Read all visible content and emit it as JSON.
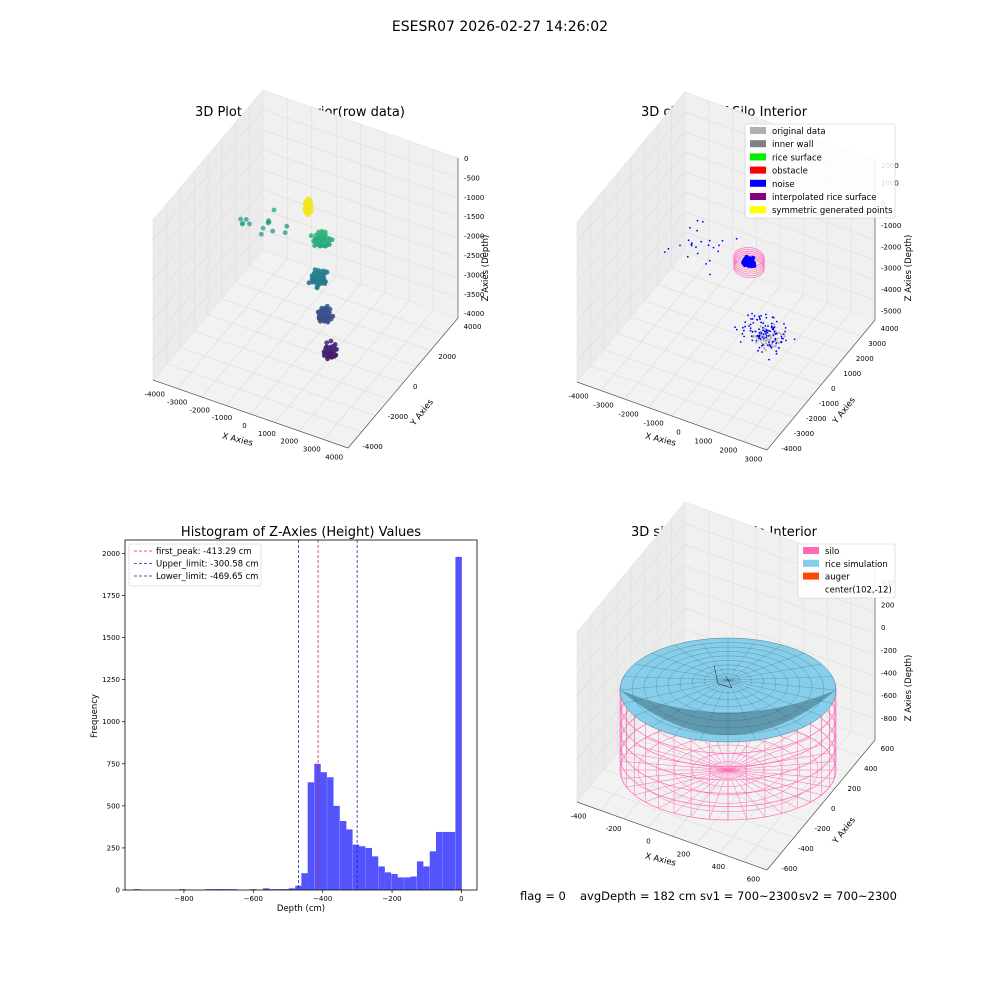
{
  "figure": {
    "title": "ESESR07 2026-02-27 14:26:02",
    "footer": {
      "flag": "flag = 0",
      "avg_depth": "avgDepth = 182 cm",
      "sv1": "sv1 = 700~2300",
      "sv2": "sv2 = 700~2300"
    }
  },
  "colors": {
    "hist_bar": "#4b4bff",
    "first_peak": "#d62728",
    "limits": "#1f1faa",
    "original": "#b0b0b0",
    "inner_wall": "#808080",
    "rice_surface": "#00ee00",
    "obstacle": "#ff0000",
    "noise": "#0000ff",
    "interpolated": "#800080",
    "symmetric": "#ffff00",
    "silo": "#ff69b4",
    "rice_sim": "#87ceeb",
    "auger": "#ff4500"
  },
  "chart_data": [
    {
      "type": "scatter",
      "title": "3D Plot of Silo Interior(row data)",
      "xlabel": "X Axies",
      "ylabel": "Y Axies",
      "zlabel": "Z Axies (Depth)",
      "x_ticks": [
        "-4000",
        "-3000",
        "-2000",
        "-1000",
        "0",
        "1000",
        "2000",
        "3000",
        "4000"
      ],
      "y_ticks": [
        "-4000",
        "-2000",
        "0",
        "2000",
        "4000"
      ],
      "z_ticks": [
        "0",
        "-500",
        "-1000",
        "-1500",
        "-2000",
        "-2500",
        "-3000",
        "-3500",
        "-4000"
      ],
      "xlim": [
        -4000,
        4000
      ],
      "ylim": [
        -4000,
        4000
      ],
      "zlim": [
        -4000,
        0
      ],
      "colormap": "viridis",
      "clusters": [
        {
          "cx": -800,
          "cy": 1600,
          "z": -900,
          "n": 45,
          "spread": 120
        },
        {
          "cx": 0,
          "cy": 1200,
          "z": -1500,
          "n": 80,
          "spread": 400
        },
        {
          "cx": 200,
          "cy": 700,
          "z": -2300,
          "n": 70,
          "spread": 450
        },
        {
          "cx": 700,
          "cy": 200,
          "z": -3000,
          "n": 60,
          "spread": 400
        },
        {
          "cx": 1200,
          "cy": -400,
          "z": -3600,
          "n": 70,
          "spread": 350
        },
        {
          "cx": -2500,
          "cy": 1500,
          "z": -1800,
          "n": 14,
          "spread": 1300
        }
      ]
    },
    {
      "type": "scatter",
      "title": "3D classify of Silo Interior",
      "xlabel": "X Axies",
      "ylabel": "Y Axies",
      "zlabel": "Z Axies (Depth)",
      "x_ticks": [
        "-4000",
        "-3000",
        "-2000",
        "-1000",
        "0",
        "1000",
        "2000",
        "3000"
      ],
      "y_ticks": [
        "-4000",
        "-3000",
        "-2000",
        "-1000",
        "0",
        "1000",
        "2000",
        "3000",
        "4000"
      ],
      "z_ticks": [
        "1000",
        "0",
        "-1000",
        "-2000",
        "-3000",
        "-4000",
        "-5000"
      ],
      "extra_z_tick": "2000",
      "xlim": [
        -4000,
        3000
      ],
      "ylim": [
        -4000,
        4000
      ],
      "zlim": [
        -5000,
        2000
      ],
      "legend": [
        "original data",
        "inner wall",
        "rice surface",
        "obstacle",
        "noise",
        "interpolated rice surface",
        "symmetric generated points"
      ],
      "legend_keys": [
        "original",
        "inner_wall",
        "rice_surface",
        "obstacle",
        "noise",
        "interpolated",
        "symmetric"
      ],
      "legend_loc": "upper right",
      "inner_ring": {
        "r": 500,
        "z_top": -800,
        "z_bottom": -1300
      },
      "noise_clusters": [
        {
          "cx": 200,
          "cy": 300,
          "z": -1000,
          "n": 90,
          "spread": 260
        },
        {
          "cx": 1500,
          "cy": -1200,
          "z": -2500,
          "n": 110,
          "spread": 1100
        },
        {
          "cx": -2000,
          "cy": 1500,
          "z": -2000,
          "n": 25,
          "spread": 1800
        }
      ],
      "grey_cluster": {
        "cx": 1800,
        "cy": -1500,
        "z": -2400,
        "n": 70,
        "spread": 700
      }
    },
    {
      "type": "bar",
      "title": "Histogram of Z-Axies (Height) Values",
      "xlabel": "Depth (cm)",
      "ylabel": "Frequency",
      "xlim": [
        -970,
        45
      ],
      "ylim": [
        0,
        2080
      ],
      "x_ticks": [
        -800,
        -600,
        -400,
        -200,
        0
      ],
      "y_ticks": [
        0,
        250,
        500,
        750,
        1000,
        1250,
        1500,
        1750,
        2000
      ],
      "bin_width": 18.5,
      "bins": [
        {
          "x": -935,
          "v": 5
        },
        {
          "x": -805,
          "v": 5
        },
        {
          "x": -730,
          "v": 5
        },
        {
          "x": -711,
          "v": 5
        },
        {
          "x": -693,
          "v": 5
        },
        {
          "x": -674,
          "v": 5
        },
        {
          "x": -656,
          "v": 5
        },
        {
          "x": -600,
          "v": 5
        },
        {
          "x": -563,
          "v": 10
        },
        {
          "x": -545,
          "v": 5
        },
        {
          "x": -526,
          "v": 5
        },
        {
          "x": -508,
          "v": 5
        },
        {
          "x": -489,
          "v": 10
        },
        {
          "x": -470,
          "v": 25
        },
        {
          "x": -452,
          "v": 100
        },
        {
          "x": -434,
          "v": 640
        },
        {
          "x": -415,
          "v": 750
        },
        {
          "x": -397,
          "v": 700
        },
        {
          "x": -378,
          "v": 670
        },
        {
          "x": -360,
          "v": 500
        },
        {
          "x": -341,
          "v": 410
        },
        {
          "x": -323,
          "v": 360
        },
        {
          "x": -304,
          "v": 270
        },
        {
          "x": -286,
          "v": 260
        },
        {
          "x": -267,
          "v": 250
        },
        {
          "x": -249,
          "v": 200
        },
        {
          "x": -230,
          "v": 140
        },
        {
          "x": -212,
          "v": 105
        },
        {
          "x": -193,
          "v": 95
        },
        {
          "x": -175,
          "v": 75
        },
        {
          "x": -156,
          "v": 75
        },
        {
          "x": -138,
          "v": 80
        },
        {
          "x": -119,
          "v": 170
        },
        {
          "x": -101,
          "v": 140
        },
        {
          "x": -82,
          "v": 230
        },
        {
          "x": -64,
          "v": 345
        },
        {
          "x": -45,
          "v": 345
        },
        {
          "x": -27,
          "v": 345
        },
        {
          "x": -8,
          "v": 1980
        }
      ],
      "lines": [
        {
          "label": "first_peak: -413.29 cm",
          "x": -413.29,
          "color_key": "first_peak"
        },
        {
          "label": "Upper_limit: -300.58 cm",
          "x": -300.58,
          "color_key": "limits"
        },
        {
          "label": "Lower_limit: -469.65 cm",
          "x": -469.65,
          "color_key": "limits"
        }
      ],
      "legend_loc": "upper left"
    },
    {
      "type": "surface",
      "title": "3D simulation of Silo Interior",
      "xlabel": "X Axies",
      "ylabel": "Y Axies",
      "zlabel": "Z Axies (Depth)",
      "x_ticks": [
        "-400",
        "-200",
        "0",
        "200",
        "400",
        "600"
      ],
      "y_ticks": [
        "-600",
        "-400",
        "-200",
        "0",
        "200",
        "400",
        "600"
      ],
      "z_ticks": [
        "400",
        "200",
        "0",
        "-200",
        "-400",
        "-600",
        "-800"
      ],
      "xlim": [
        -550,
        650
      ],
      "ylim": [
        -650,
        650
      ],
      "zlim": [
        -1000,
        500
      ],
      "legend": [
        "silo",
        "rice simulation",
        "auger",
        "center(102,-12)"
      ],
      "legend_keys": [
        "silo",
        "rice_sim",
        "auger",
        ""
      ],
      "legend_loc": "upper right",
      "silo": {
        "cx": 102,
        "cy": -12,
        "r": 520,
        "z_top": -50,
        "z_bottom": -1000
      },
      "rice_surface_z": -320,
      "center": [
        102,
        -12
      ]
    }
  ]
}
